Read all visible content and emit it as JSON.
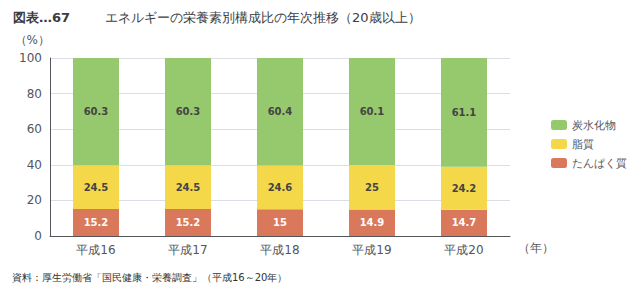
{
  "chart_data": {
    "type": "bar",
    "title": "エネルギーの栄養素別構成比の年次推移（20歳以上）",
    "annotations": [
      "図表…67",
      "資料：厚生労働省「国民健康・栄養調査」（平成16～20年）"
    ],
    "xlabel": "（年）",
    "ylabel": "（%）",
    "categories": [
      "平成16",
      "平成17",
      "平成18",
      "平成19",
      "平成20"
    ],
    "series": [
      {
        "name": "たんぱく質",
        "color": "#d9785a",
        "values": [
          15.2,
          15.2,
          15.0,
          14.9,
          14.7
        ]
      },
      {
        "name": "脂質",
        "color": "#f5d84a",
        "values": [
          24.5,
          24.5,
          24.6,
          25.0,
          24.2
        ]
      },
      {
        "name": "炭水化物",
        "color": "#96c96e",
        "values": [
          60.3,
          60.3,
          60.4,
          60.1,
          61.1
        ]
      }
    ],
    "stacked": true,
    "data_labels": true,
    "ylim": [
      0,
      100
    ],
    "yticks": [
      0,
      20,
      40,
      60,
      80,
      100
    ],
    "grid": true,
    "legend": "right"
  }
}
